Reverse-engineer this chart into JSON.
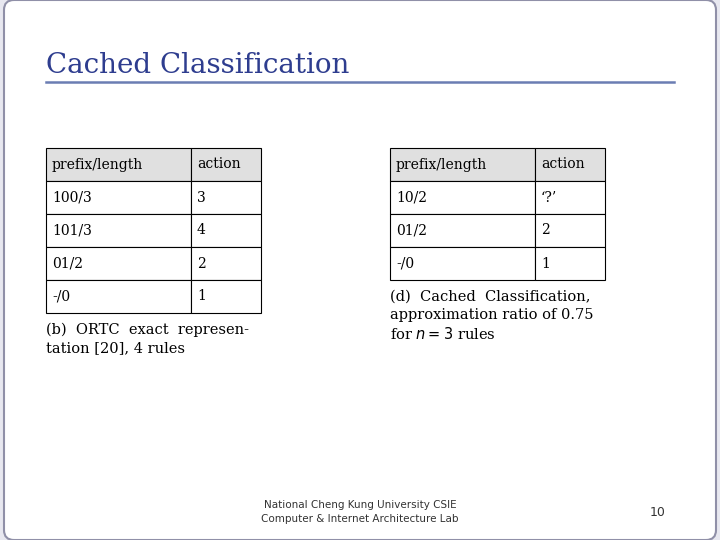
{
  "title": "Cached Classification",
  "title_color": "#2E3D8F",
  "bg_color": "#E8E8F0",
  "slide_bg": "#FFFFFF",
  "border_color": "#9090A8",
  "separator_color": "#6B7DB3",
  "footer_text": "National Cheng Kung University CSIE\nComputer & Internet Architecture Lab",
  "footer_page": "10",
  "table_left_headers": [
    "prefix/length",
    "action"
  ],
  "table_left_rows": [
    [
      "100/3",
      "3"
    ],
    [
      "101/3",
      "4"
    ],
    [
      "01/2",
      "2"
    ],
    [
      "-/0",
      "1"
    ]
  ],
  "caption_left_line1": "(b)  ORTC  exact  represen-",
  "caption_left_line2": "tation [20], 4 rules",
  "table_right_headers": [
    "prefix/length",
    "action"
  ],
  "table_right_rows": [
    [
      "10/2",
      "‘?’"
    ],
    [
      "01/2",
      "2"
    ],
    [
      "-/0",
      "1"
    ]
  ],
  "caption_right_line1": "(d)  Cached  Classification,",
  "caption_right_line2": "approximation ratio of 0.75",
  "caption_right_line3": "for $n = 3$ rules"
}
